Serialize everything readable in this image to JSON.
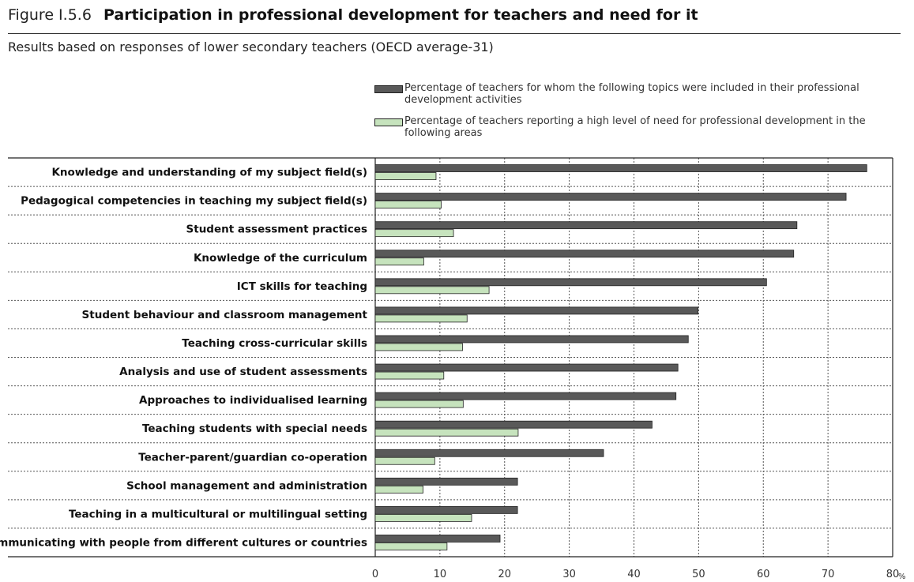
{
  "figure": {
    "label": "Figure I.5.6",
    "title": "Participation in professional development for teachers and need for it",
    "subtitle": "Results based on responses of lower secondary teachers (OECD average-31)"
  },
  "legend": [
    {
      "label": "Percentage of teachers for whom the following topics were included in their professional development activities",
      "color": "#595959"
    },
    {
      "label": "Percentage of teachers reporting a high level of need for professional development in the following areas",
      "color": "#c6e3bd"
    }
  ],
  "chart_data": {
    "type": "bar",
    "orientation": "horizontal",
    "categories": [
      "Knowledge and understanding of my subject field(s)",
      "Pedagogical competencies in teaching my subject field(s)",
      "Student assessment practices",
      "Knowledge of the curriculum",
      "ICT skills for teaching",
      "Student behaviour and classroom management",
      "Teaching cross-curricular skills",
      "Analysis and use of student assessments",
      "Approaches to individualised learning",
      "Teaching students with special needs",
      "Teacher-parent/guardian co-operation",
      "School management and administration",
      "Teaching in a multicultural or multilingual setting",
      "Communicating with people from different cultures or countries"
    ],
    "series": [
      {
        "name": "Percentage of teachers for whom the following topics were included in their professional development activities",
        "color": "#595959",
        "values": [
          76,
          72.8,
          65.2,
          64.7,
          60.5,
          49.9,
          48.4,
          46.8,
          46.5,
          42.8,
          35.3,
          22,
          22,
          19.3
        ]
      },
      {
        "name": "Percentage of teachers reporting a high level of need for professional development in the following areas",
        "color": "#c6e3bd",
        "values": [
          9.4,
          10.2,
          12.1,
          7.5,
          17.6,
          14.2,
          13.5,
          10.6,
          13.6,
          22.1,
          9.2,
          7.4,
          14.9,
          11.1
        ]
      }
    ],
    "xlim": [
      0,
      80
    ],
    "xticks": [
      0,
      10,
      20,
      30,
      40,
      50,
      60,
      70,
      80
    ],
    "x_unit": "%",
    "grid": true
  }
}
